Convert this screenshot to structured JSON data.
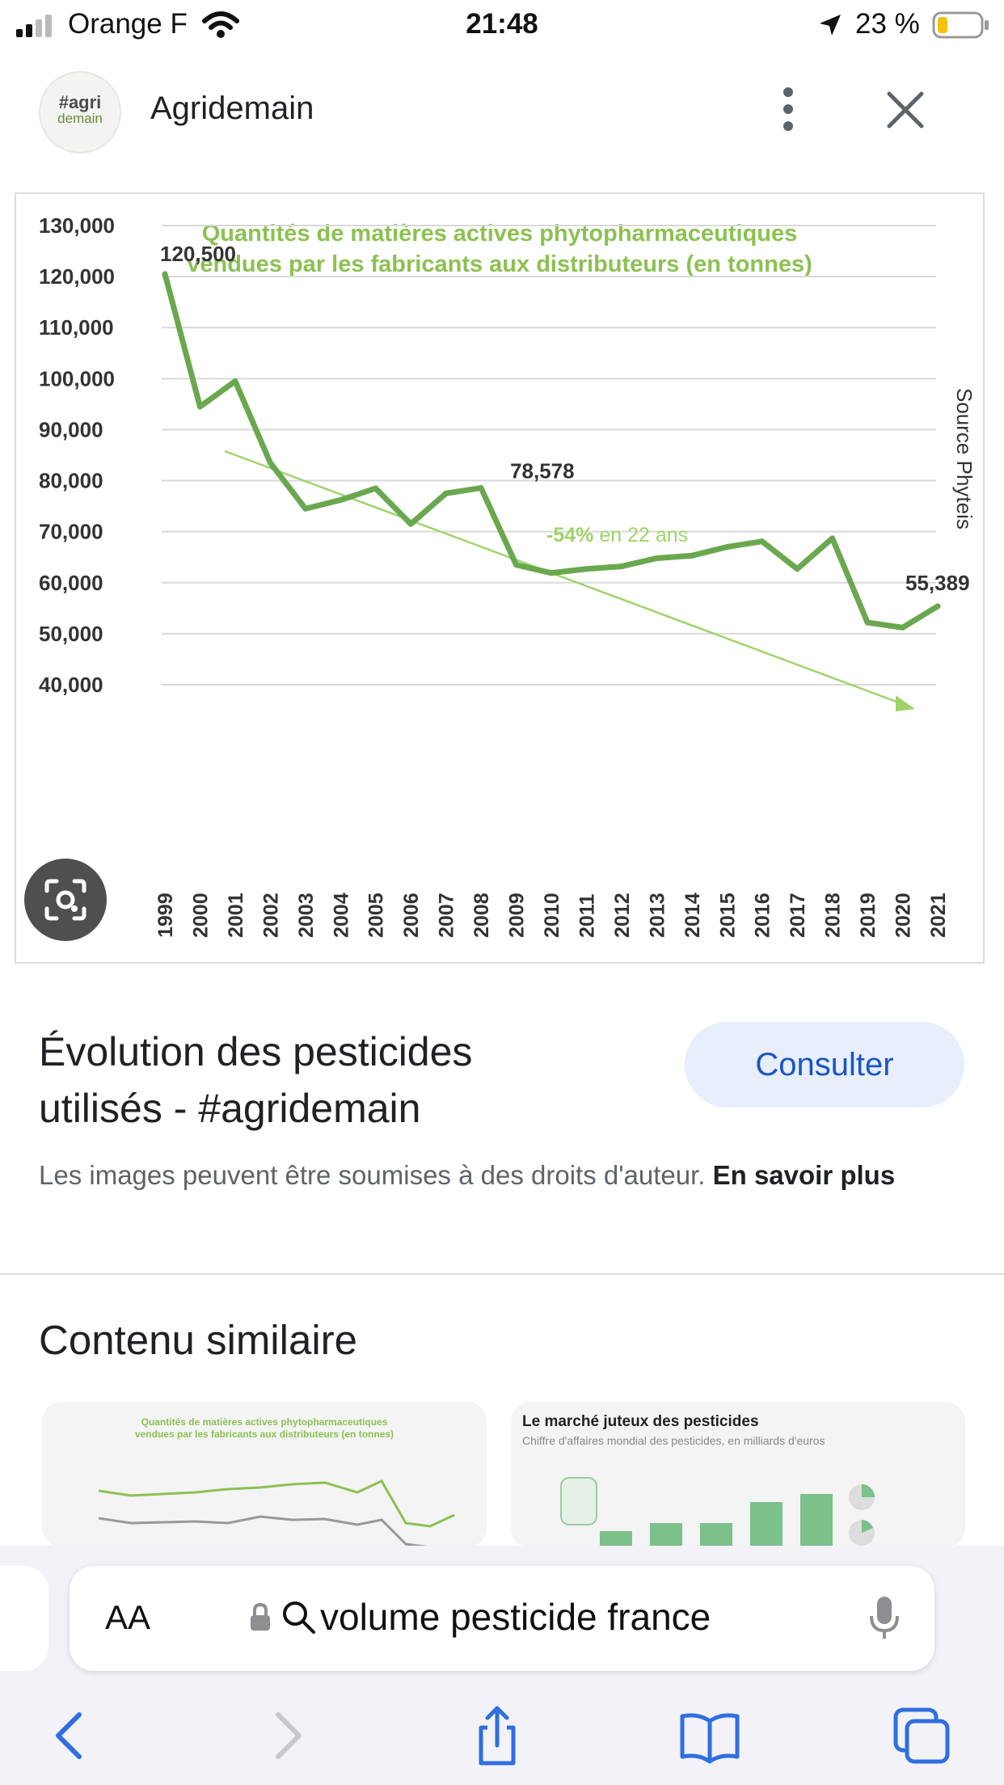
{
  "status_bar": {
    "carrier": "Orange F",
    "time": "21:48",
    "battery": "23 %"
  },
  "header": {
    "logo_line1_a": "#agri",
    "logo_line2": "demain",
    "site_name": "Agridemain"
  },
  "chart": {
    "title_line1": "Quantités de matières actives phytopharmaceutiques",
    "title_line2": "vendues par les fabricants aux distributeurs (en tonnes)",
    "source_label": "Source Phyteis",
    "trend_label_bold": "-54%",
    "trend_label_rest": " en 22 ans"
  },
  "chart_data": {
    "type": "line",
    "x": [
      "1999",
      "2000",
      "2001",
      "2002",
      "2003",
      "2004",
      "2005",
      "2006",
      "2007",
      "2008",
      "2009",
      "2010",
      "2011",
      "2012",
      "2013",
      "2014",
      "2015",
      "2016",
      "2017",
      "2018",
      "2019",
      "2020",
      "2021"
    ],
    "values": [
      120500,
      94500,
      99500,
      83500,
      74500,
      76200,
      78500,
      71500,
      77500,
      78578,
      63500,
      61900,
      62700,
      63200,
      64800,
      65300,
      67000,
      68100,
      62700,
      68700,
      52200,
      51200,
      55389
    ],
    "yticks": [
      "130,000",
      "120,000",
      "110,000",
      "100,000",
      "90,000",
      "80,000",
      "70,000",
      "60,000",
      "50,000",
      "40,000"
    ],
    "ylim": [
      40000,
      130000
    ],
    "annotations": [
      "120,500",
      "78,578",
      "55,389"
    ],
    "line_color": "#6aa84f",
    "grid": true
  },
  "result": {
    "title": "Évolution des pesticides utilisés - #agridemain",
    "consult_label": "Consulter",
    "copyright_text": "Les images peuvent être soumises à des droits d'auteur.",
    "learn_more": "En savoir plus"
  },
  "similar": {
    "heading": "Contenu similaire",
    "thumb1_title_line1": "Quantités de matières actives phytopharmaceutiques",
    "thumb1_title_line2": "vendues par les fabricants aux distributeurs (en tonnes)",
    "thumb2_title": "Le marché juteux des pesticides",
    "thumb2_subtitle": "Chiffre d'affaires mondial des pesticides, en milliards d'euros"
  },
  "browser": {
    "aa_label": "AA",
    "url_text": "volume pesticide france"
  },
  "colors": {
    "accent_green": "#8cc152",
    "line_green": "#6aa84f",
    "consult_bg": "#e8eefc",
    "consult_text": "#1a56c4"
  }
}
